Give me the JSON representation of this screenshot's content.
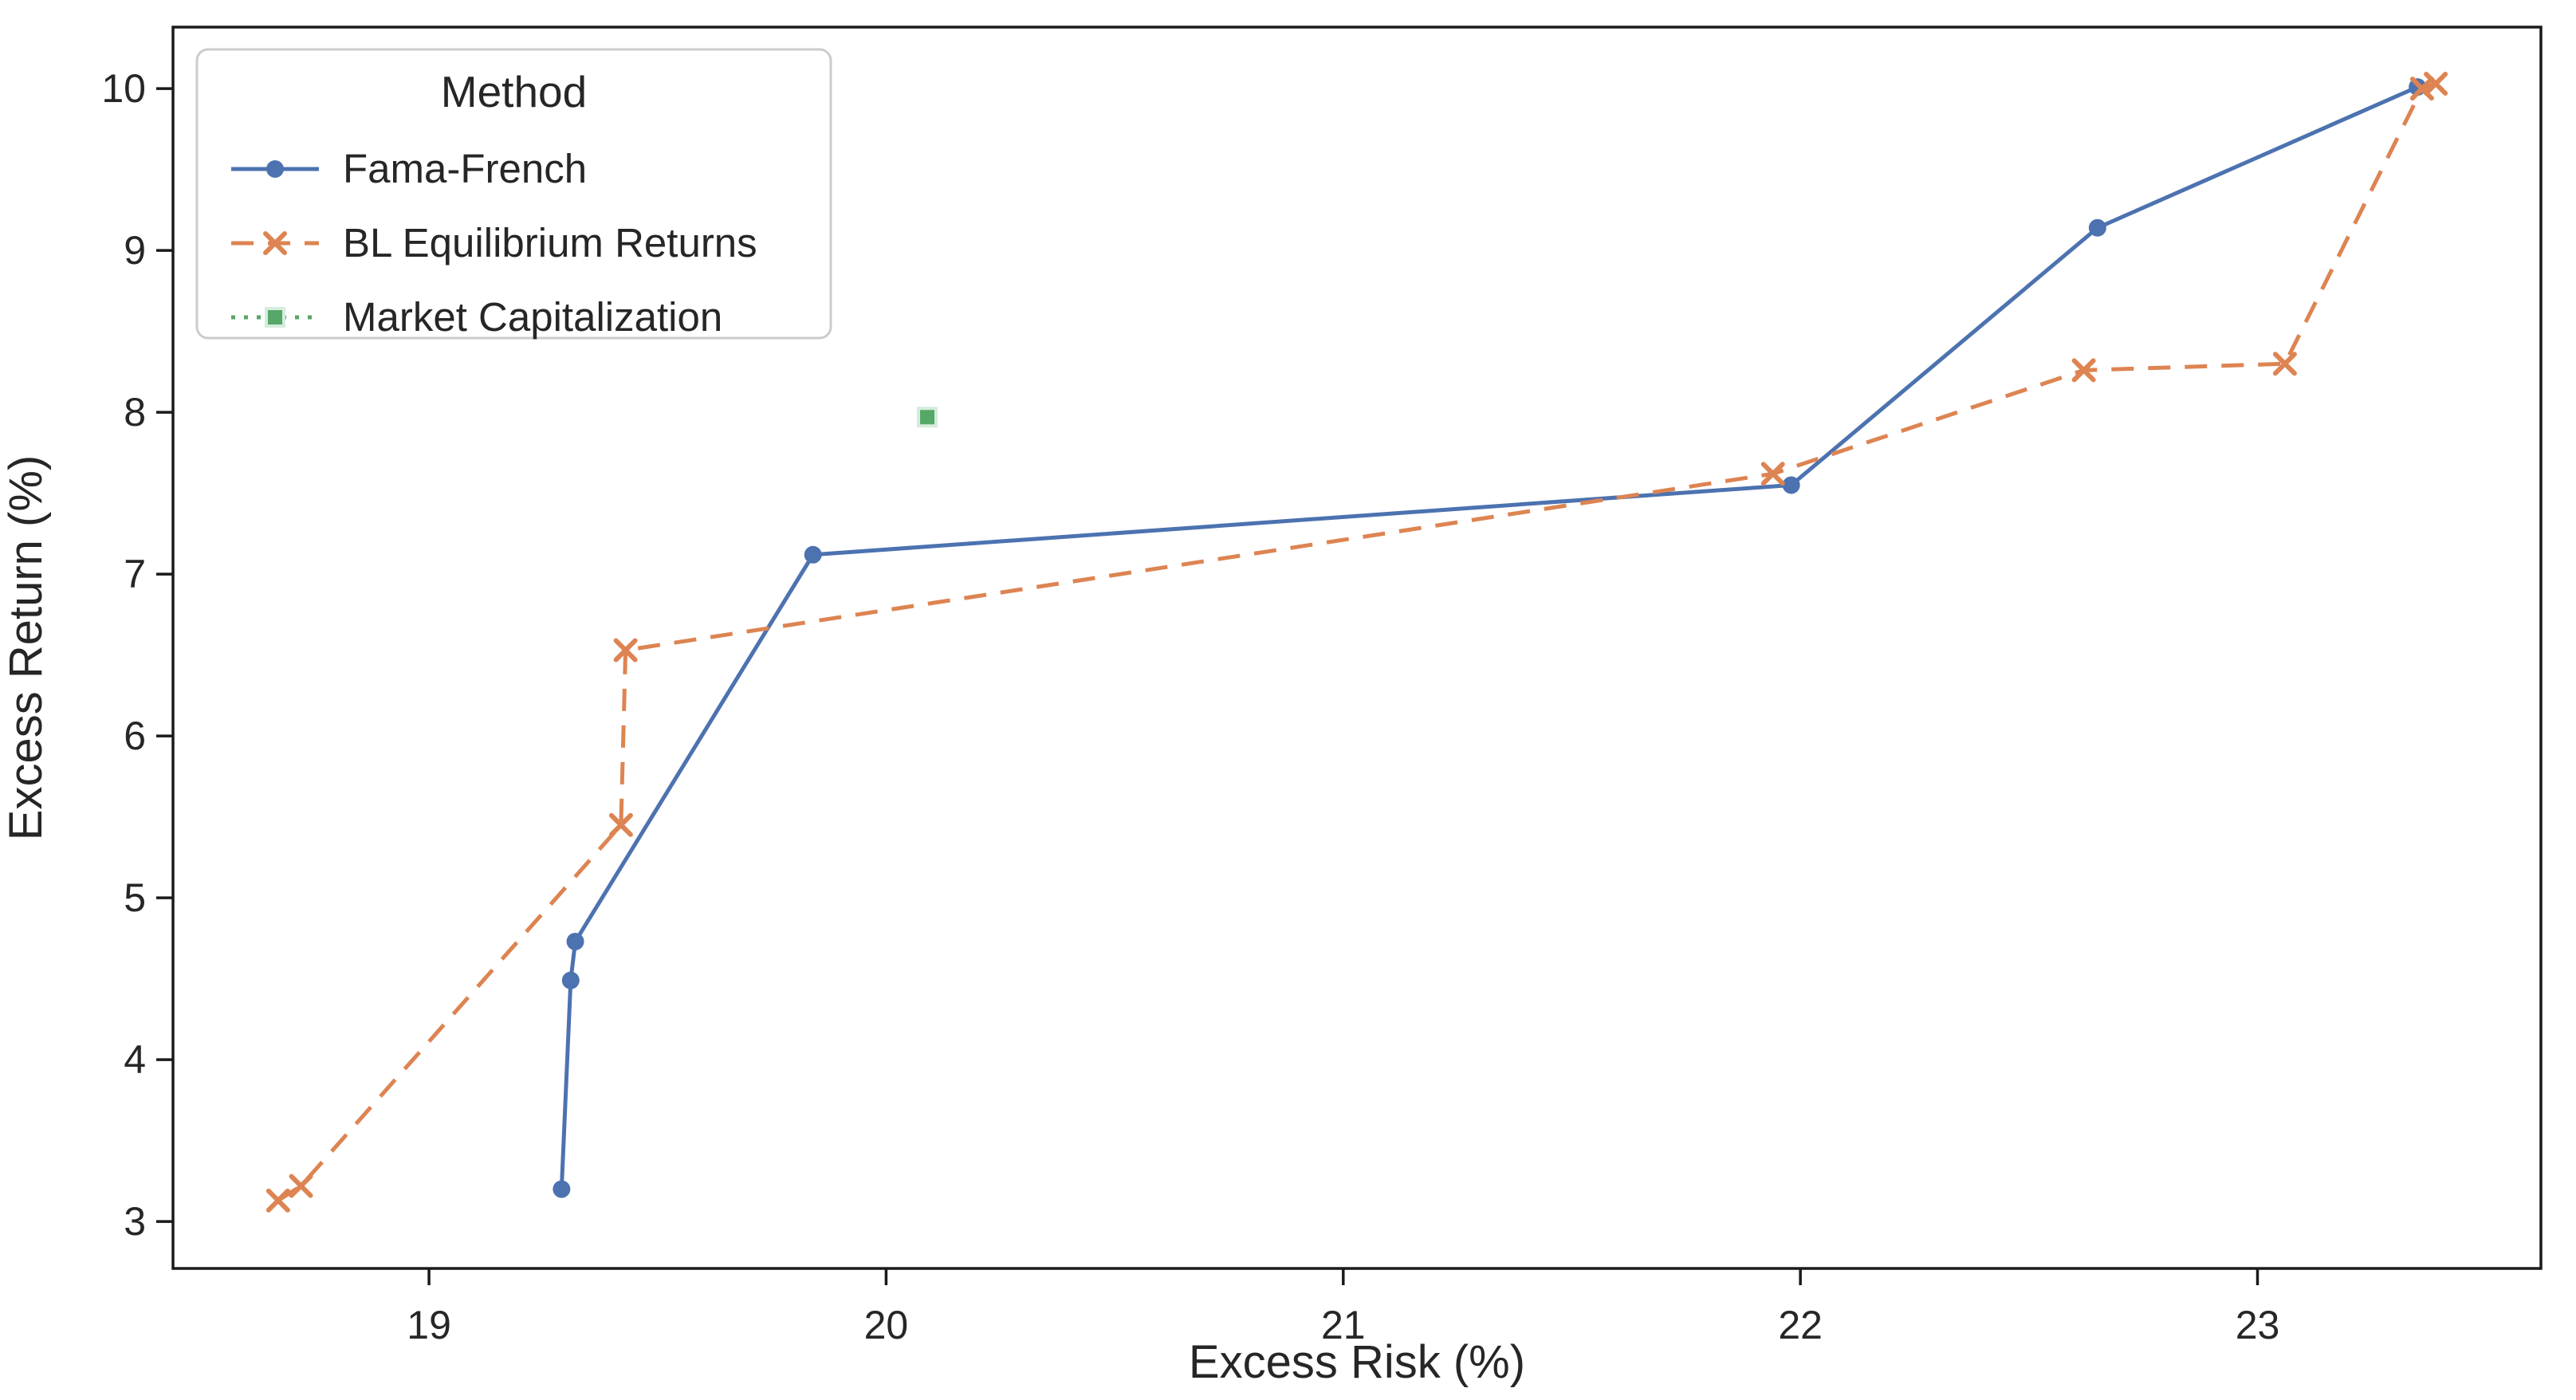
{
  "figure": {
    "background": "#ffffff",
    "spine_color": "#1a1a1a",
    "text_color": "#262626",
    "legend_frame_color": "#cccccc"
  },
  "chart_data": {
    "type": "line",
    "title": "",
    "xlabel": "Excess Risk (%)",
    "ylabel": "Excess Return (%)",
    "xlim": [
      18.44,
      23.62
    ],
    "ylim": [
      2.71,
      10.38
    ],
    "xticks": [
      19,
      20,
      21,
      22,
      23
    ],
    "yticks": [
      3,
      4,
      5,
      6,
      7,
      8,
      9,
      10
    ],
    "grid": false,
    "legend": {
      "title": "Method",
      "position": "upper-left"
    },
    "series": [
      {
        "name": "Fama-French",
        "color": "#4c72b0",
        "line_style": "solid",
        "marker": "circle",
        "points": [
          [
            19.29,
            3.2
          ],
          [
            19.31,
            4.49
          ],
          [
            19.32,
            4.73
          ],
          [
            19.84,
            7.12
          ],
          [
            21.98,
            7.55
          ],
          [
            22.65,
            9.14
          ],
          [
            23.35,
            10.01
          ]
        ]
      },
      {
        "name": "BL Equilibrium Returns",
        "color": "#dd8452",
        "line_style": "dashed",
        "marker": "x",
        "points": [
          [
            18.67,
            3.13
          ],
          [
            18.72,
            3.22
          ],
          [
            19.42,
            5.45
          ],
          [
            19.43,
            6.53
          ],
          [
            21.94,
            7.62
          ],
          [
            22.62,
            8.26
          ],
          [
            23.06,
            8.3
          ],
          [
            23.36,
            10.0
          ],
          [
            23.39,
            10.03
          ]
        ]
      },
      {
        "name": "Market Capitalization",
        "color": "#55a868",
        "marker_edge": "#d6ecdd",
        "line_style": "dotted",
        "marker": "square",
        "points": [
          [
            20.09,
            7.97
          ]
        ]
      }
    ]
  }
}
